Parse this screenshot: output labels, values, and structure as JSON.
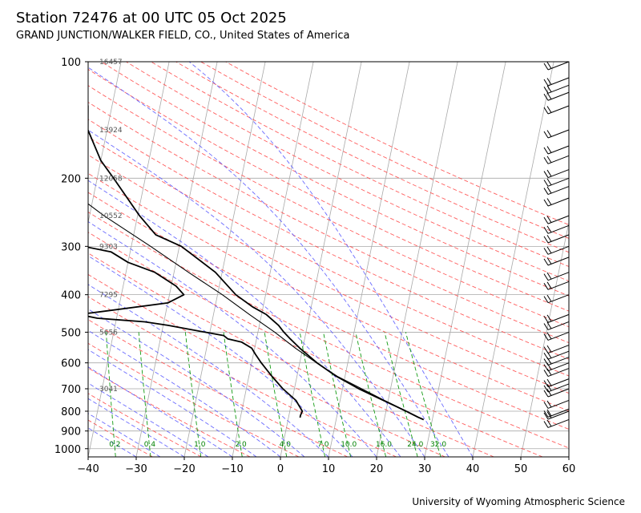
{
  "title": "Station 72476 at 00 UTC 05 Oct 2025",
  "subtitle": "GRAND JUNCTION/WALKER FIELD, CO., United States of America",
  "footer": "University of Wyoming Atmospheric Science",
  "chart_data": {
    "type": "skew-t log-p",
    "xlim": [
      -40,
      60
    ],
    "ylim": [
      1050,
      100
    ],
    "x_ticks": [
      -40,
      -30,
      -20,
      -10,
      0,
      10,
      20,
      30,
      40,
      50,
      60
    ],
    "p_ticks": [
      100,
      200,
      300,
      400,
      500,
      600,
      700,
      800,
      900,
      1000
    ],
    "height_labels": [
      {
        "p": 100,
        "z": "16457"
      },
      {
        "p": 150,
        "z": "13924"
      },
      {
        "p": 200,
        "z": "12058"
      },
      {
        "p": 250,
        "z": "10552"
      },
      {
        "p": 300,
        "z": "9303"
      },
      {
        "p": 400,
        "z": "7295"
      },
      {
        "p": 500,
        "z": "5656"
      },
      {
        "p": 700,
        "z": "3041"
      }
    ],
    "mixing_ratios": [
      "0.2",
      "0.4",
      "1.0",
      "2.0",
      "4.0",
      "7.0",
      "10.0",
      "16.0",
      "24.0",
      "32.0"
    ],
    "temperature": {
      "p": [
        841,
        830,
        800,
        750,
        700,
        650,
        600,
        550,
        520,
        500,
        480,
        450,
        430,
        400,
        350,
        300,
        280,
        250,
        200,
        180,
        150,
        130,
        100
      ],
      "t": [
        28.2,
        27.0,
        24.2,
        19.0,
        13.4,
        8.2,
        3.6,
        -0.6,
        -3.0,
        -4.6,
        -6.0,
        -9.0,
        -12.2,
        -16.2,
        -21.4,
        -29.6,
        -35.4,
        -39.6,
        -46.6,
        -50.0,
        -54.0,
        -55.0,
        -62.0
      ]
    },
    "dewpoint": {
      "p": [
        831,
        820,
        800,
        750,
        700,
        650,
        600,
        570,
        550,
        530,
        520,
        510,
        500,
        480,
        470,
        460,
        450,
        420,
        400,
        380,
        350,
        330,
        310,
        300,
        295,
        290,
        250,
        200,
        180,
        150,
        120,
        100
      ],
      "td": [
        2.4,
        2.4,
        2.6,
        0.8,
        -2.4,
        -5.2,
        -8.0,
        -9.6,
        -10.6,
        -13.0,
        -16.0,
        -17.0,
        -21.0,
        -29.0,
        -34.0,
        -44.0,
        -48.0,
        -30.0,
        -27.0,
        -29.0,
        -34.0,
        -40.0,
        -44.0,
        -50.0,
        -56.0,
        -57.0,
        -58.0,
        -65.0,
        -73.0,
        -81.0,
        -86.0,
        -88.0
      ]
    },
    "parcel": {
      "p": [
        841,
        750,
        650,
        600,
        550,
        500,
        450,
        400,
        350,
        300,
        250,
        200,
        150,
        100
      ],
      "t": [
        28.2,
        19.2,
        8.4,
        3.5,
        -1.5,
        -6.5,
        -12.5,
        -19.0,
        -27.0,
        -36.0,
        -47.0,
        -59.0,
        -75.0,
        -95.0
      ]
    },
    "wind_levels_p": [
      841,
      800,
      790,
      750,
      700,
      680,
      660,
      620,
      600,
      580,
      560,
      540,
      500,
      470,
      450,
      400,
      370,
      350,
      320,
      300,
      280,
      265,
      250,
      225,
      210,
      200,
      190,
      175,
      165,
      150,
      130,
      120,
      115,
      110,
      100
    ]
  }
}
